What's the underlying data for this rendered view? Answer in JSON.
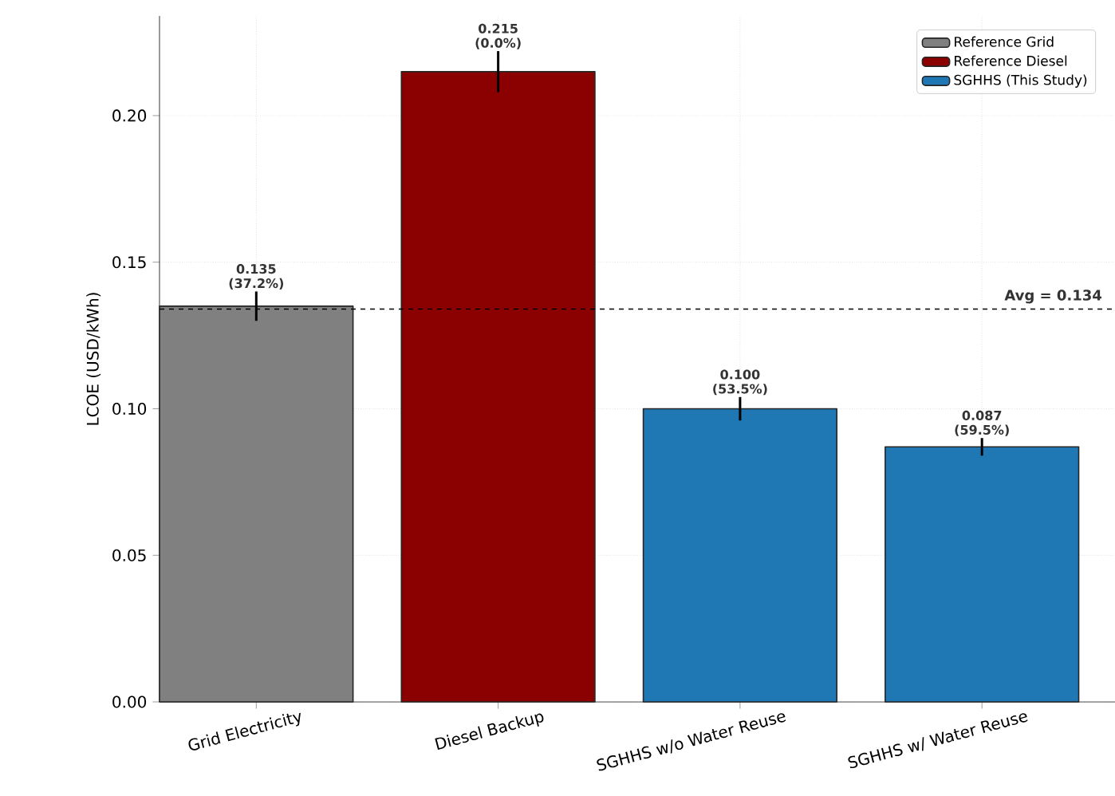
{
  "chart_data": {
    "type": "bar",
    "ylabel": "LCOE (USD/kWh)",
    "categories": [
      "Grid Electricity",
      "Diesel Backup",
      "SGHHS w/o Water Reuse",
      "SGHHS w/ Water Reuse"
    ],
    "series": [
      {
        "name": "Reference Grid",
        "color": "#808080",
        "values": [
          0.135,
          null,
          null,
          null
        ],
        "errors": [
          0.005,
          null,
          null,
          null
        ],
        "value_labels": [
          "0.135 (37.2%)",
          null,
          null,
          null
        ]
      },
      {
        "name": "Reference Diesel",
        "color": "#8b0000",
        "values": [
          null,
          0.215,
          null,
          null
        ],
        "errors": [
          null,
          0.007,
          null,
          null
        ],
        "value_labels": [
          null,
          "0.215 (0.0%)",
          null,
          null
        ]
      },
      {
        "name": "SGHHS (This Study)",
        "color": "#1f77b4",
        "values": [
          null,
          null,
          0.1,
          0.087
        ],
        "errors": [
          null,
          null,
          0.004,
          0.003
        ],
        "value_labels": [
          null,
          null,
          "0.100 (53.5%)",
          "0.087 (59.5%)"
        ]
      }
    ],
    "ylim": [
      0,
      0.234
    ],
    "yticks": [
      {
        "value": 0,
        "label": "0.00"
      },
      {
        "value": 0.05,
        "label": "0.05"
      },
      {
        "value": 0.1,
        "label": "0.10"
      },
      {
        "value": 0.15,
        "label": "0.15"
      },
      {
        "value": 0.2,
        "label": "0.20"
      }
    ],
    "ref_lines": [
      {
        "axis": "y",
        "value": 0.134,
        "label": "Avg = 0.134",
        "color": "#000000",
        "line_style": "dashed"
      }
    ],
    "grid": true,
    "legend": "top right"
  }
}
